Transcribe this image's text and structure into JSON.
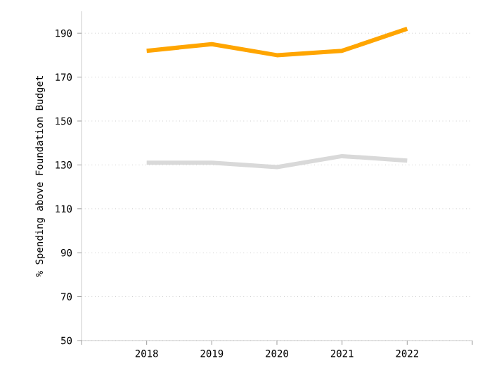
{
  "chart_data": {
    "type": "line",
    "ylabel": "% Spending above Foundation Budget",
    "x": [
      2018,
      2019,
      2020,
      2021,
      2022
    ],
    "series": [
      {
        "color": "#ffa500",
        "values": [
          182,
          185,
          180,
          182,
          192
        ]
      },
      {
        "color": "#d9d9d9",
        "values": [
          131,
          131,
          129,
          134,
          132
        ]
      }
    ],
    "xlim": [
      2017,
      2023
    ],
    "xticks": [
      {
        "value": 2017,
        "label": null
      },
      2018,
      2019,
      2020,
      2021,
      2022,
      {
        "value": 2023,
        "label": null
      }
    ],
    "ylim": [
      50,
      200
    ],
    "yticks": [
      50,
      70,
      90,
      110,
      130,
      150,
      170,
      190
    ],
    "grid": "y",
    "marker": "none",
    "line_style": "solid"
  }
}
